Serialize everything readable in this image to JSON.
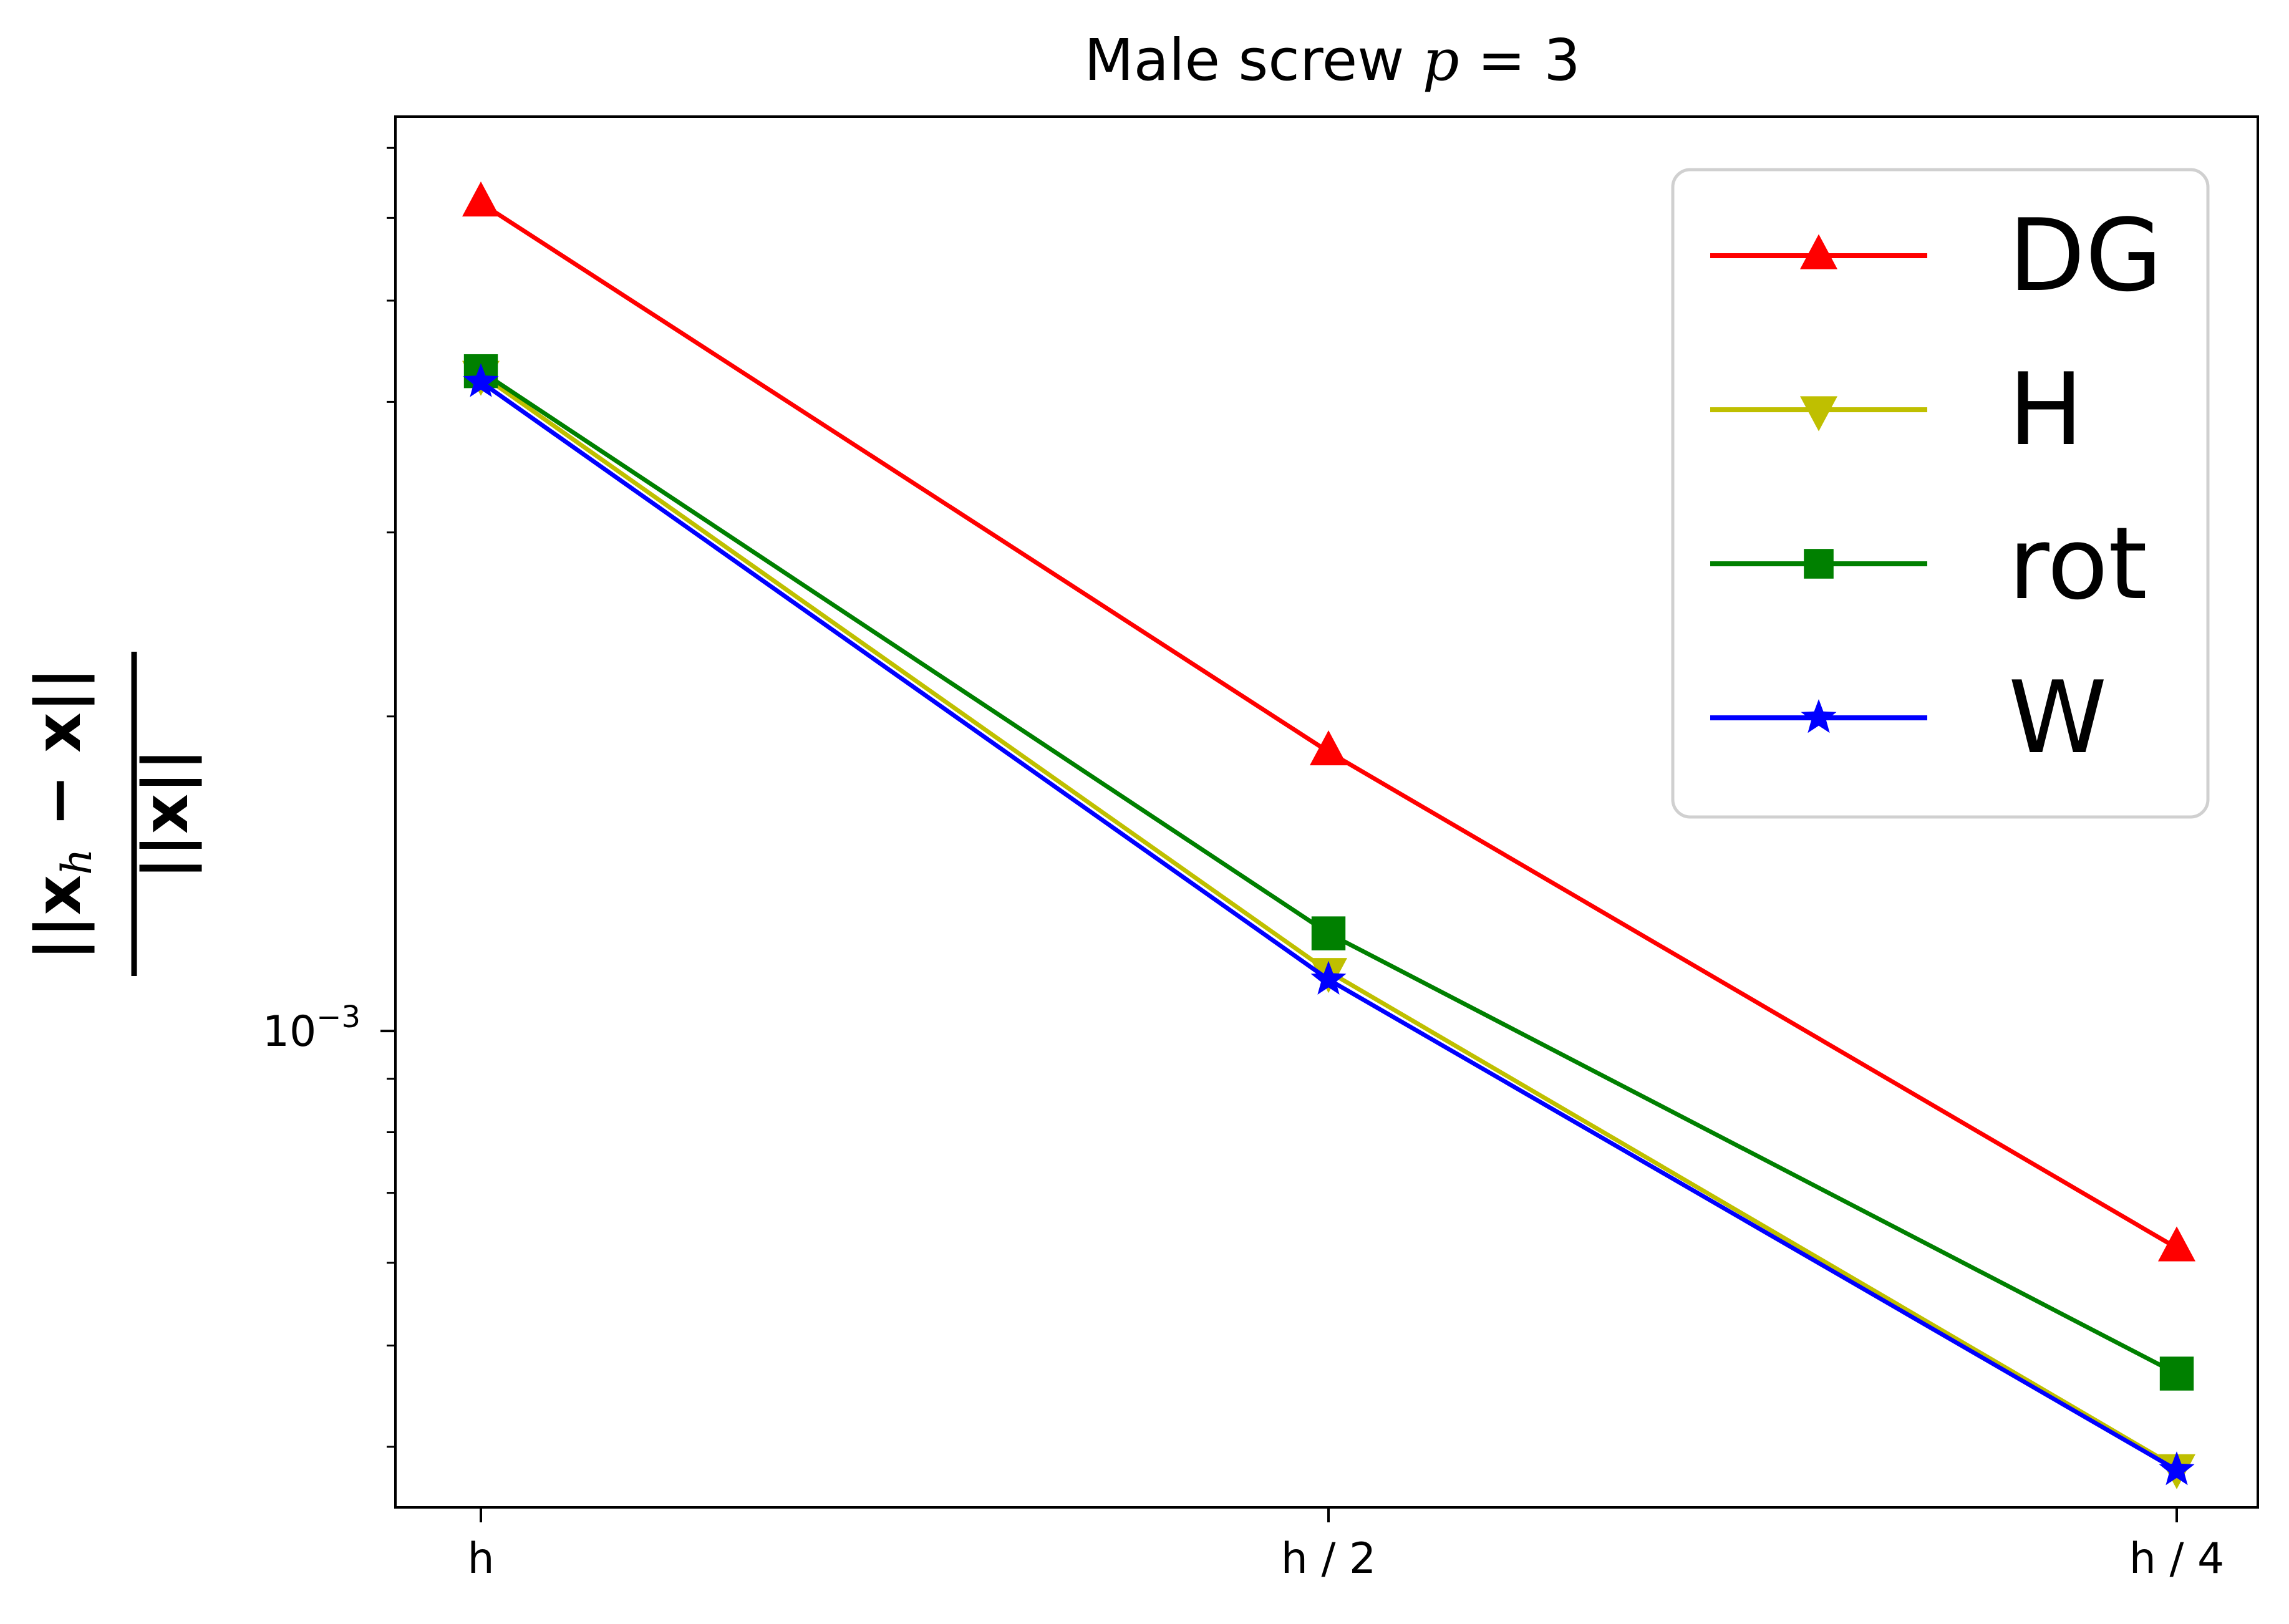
{
  "chart_data": {
    "type": "line",
    "title": "Male screw p = 3",
    "title_parts": {
      "text": "Male screw ",
      "math_var": "p",
      "math_rest": " = 3"
    },
    "xlabel": "",
    "ylabel": "||x_h − x|| / ||x||",
    "ylabel_parts": {
      "numerator": "||x",
      "subscript": "h",
      "numerator_rest": " − x||",
      "denominator": "||x||"
    },
    "y_scale": "log",
    "ylim": [
      0.00035,
      0.0075
    ],
    "y_tick_label": {
      "base": "10",
      "exponent": "−3",
      "value": 0.001
    },
    "categories": [
      "h",
      "h / 2",
      "h / 4"
    ],
    "series": [
      {
        "name": "DG",
        "color": "#ff0000",
        "marker": "triangle-up",
        "values": [
          0.0062,
          0.00185,
          0.00062
        ]
      },
      {
        "name": "H",
        "color": "#bfbf00",
        "marker": "triangle-down",
        "values": [
          0.00425,
          0.00114,
          0.000382
        ]
      },
      {
        "name": "rot",
        "color": "#008000",
        "marker": "square",
        "values": [
          0.00428,
          0.00124,
          0.00047
        ]
      },
      {
        "name": "W",
        "color": "#0000ff",
        "marker": "star",
        "values": [
          0.00418,
          0.00112,
          0.00038
        ]
      }
    ],
    "legend_placement": "top-right",
    "grid": false
  }
}
